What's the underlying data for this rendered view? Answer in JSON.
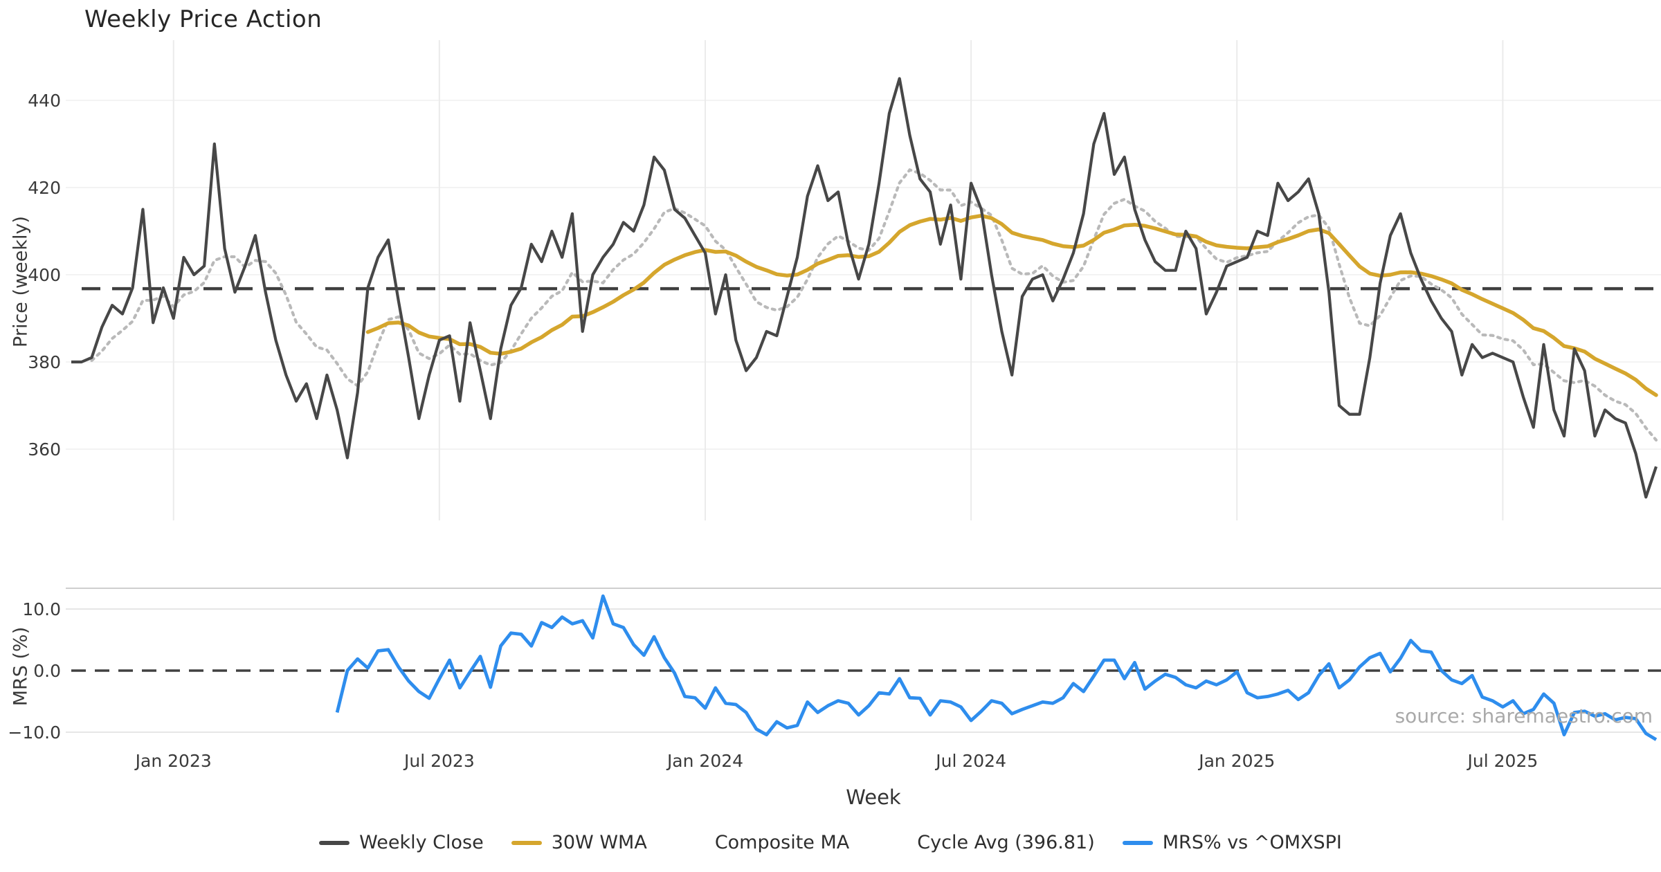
{
  "title": "Weekly Price Action",
  "source_note": "source: sharemaestro.com",
  "colors": {
    "close": "#474747",
    "wma": "#d5a62d",
    "composite": "#b9b9b9",
    "cycle_avg": "#3f3f3f",
    "mrs": "#2e8ded",
    "grid": "#ebebeb",
    "grid_faint": "#f3f3f3",
    "panel_border": "#cfcfcf",
    "tick_text": "#3a3a3a"
  },
  "legend": [
    {
      "label": "Weekly Close",
      "color": "#474747",
      "style": "solid"
    },
    {
      "label": "30W WMA",
      "color": "#d5a62d",
      "style": "solid"
    },
    {
      "label": "Composite MA",
      "color": "#b9b9b9",
      "style": "dotted"
    },
    {
      "label": "Cycle Avg (396.81)",
      "color": "#3f3f3f",
      "style": "dashed"
    },
    {
      "label": "MRS% vs ^OMXSPI",
      "color": "#2e8ded",
      "style": "solid"
    }
  ],
  "chart_data": [
    {
      "type": "line",
      "panel": "price",
      "title": "Weekly Price Action",
      "xlabel": "",
      "ylabel": "Price (weekly)",
      "ylim": [
        344,
        453.5
      ],
      "yticks": [
        {
          "v": 360,
          "label": "360"
        },
        {
          "v": 380,
          "label": "380"
        },
        {
          "v": 400,
          "label": "400"
        },
        {
          "v": 420,
          "label": "420"
        },
        {
          "v": 440,
          "label": "440"
        }
      ],
      "x_ticks": [
        {
          "i": 10,
          "label": "Jan 2023"
        },
        {
          "i": 36,
          "label": "Jul 2023"
        },
        {
          "i": 62,
          "label": "Jan 2024"
        },
        {
          "i": 88,
          "label": "Jul 2024"
        },
        {
          "i": 114,
          "label": "Jan 2025"
        },
        {
          "i": 140,
          "label": "Jul 2025"
        }
      ],
      "grid": "vertical-and-faint-horizontal",
      "legend_position": "bottom-center",
      "cycle_avg": 396.81,
      "series": [
        {
          "name": "Weekly Close",
          "values": [
            380,
            380,
            381,
            388,
            393,
            391,
            397,
            415,
            389,
            397,
            390,
            404,
            400,
            402,
            430,
            406,
            396,
            402,
            409,
            396,
            385,
            377,
            371,
            375,
            367,
            377,
            369,
            358,
            373,
            397,
            404,
            408,
            394,
            381,
            367,
            377,
            385,
            386,
            371,
            389,
            378,
            367,
            383,
            393,
            397,
            407,
            403,
            410,
            404,
            414,
            387,
            400,
            404,
            407,
            412,
            410,
            416,
            427,
            424,
            415,
            413,
            409,
            405,
            391,
            400,
            385,
            378,
            381,
            387,
            386,
            395,
            404,
            418,
            425,
            417,
            419,
            407,
            399,
            407,
            421,
            437,
            445,
            432,
            422,
            419,
            407,
            416,
            399,
            421,
            415,
            400,
            387,
            377,
            395,
            399,
            400,
            394,
            399,
            405,
            414,
            430,
            437,
            423,
            427,
            415,
            408,
            403,
            401,
            401,
            410,
            406,
            391,
            396,
            402,
            403,
            404,
            410,
            409,
            421,
            417,
            419,
            422,
            414,
            396,
            370,
            368,
            368,
            381,
            398,
            409,
            414,
            405,
            399,
            394,
            390,
            387,
            377,
            384,
            381,
            382,
            381,
            380,
            372,
            365,
            384,
            369,
            363,
            383,
            378,
            363,
            369,
            367,
            366,
            359,
            349,
            356
          ]
        },
        {
          "name": "30W WMA",
          "derived_from": "Weekly Close",
          "method": "weighted_moving_average",
          "window": 30
        },
        {
          "name": "Composite MA",
          "derived_from": "Weekly Close",
          "method": "mean_of_smas",
          "windows": [
            3,
            8,
            15
          ]
        },
        {
          "name": "Cycle Avg (396.81)",
          "method": "constant",
          "value": 396.81
        }
      ]
    },
    {
      "type": "line",
      "panel": "mrs",
      "xlabel": "Week",
      "ylabel": "MRS (%)",
      "ylim": [
        -12.4,
        13.4
      ],
      "yticks": [
        {
          "v": 10,
          "label": "10.0"
        },
        {
          "v": 0,
          "label": "0.0"
        },
        {
          "v": -10,
          "label": "−10.0"
        }
      ],
      "zero_line_dashed": true,
      "series": [
        {
          "name": "MRS% vs ^OMXSPI",
          "values": [
            null,
            null,
            null,
            null,
            null,
            null,
            null,
            null,
            null,
            null,
            null,
            null,
            null,
            null,
            null,
            null,
            null,
            null,
            null,
            null,
            null,
            null,
            null,
            null,
            null,
            null,
            -6.8,
            0.0,
            1.9,
            0.4,
            3.2,
            3.4,
            0.6,
            -1.7,
            -3.4,
            -4.5,
            -1.3,
            1.7,
            -2.8,
            -0.2,
            2.3,
            -2.7,
            4.0,
            6.1,
            5.9,
            4.0,
            7.8,
            7.0,
            8.7,
            7.6,
            8.1,
            5.3,
            12.1,
            7.6,
            7.0,
            4.2,
            2.5,
            5.5,
            2.1,
            -0.4,
            -4.2,
            -4.4,
            -6.1,
            -2.8,
            -5.3,
            -5.5,
            -6.8,
            -9.5,
            -10.4,
            -8.3,
            -9.3,
            -8.9,
            -5.1,
            -6.8,
            -5.7,
            -4.9,
            -5.3,
            -7.2,
            -5.7,
            -3.6,
            -3.8,
            -1.3,
            -4.4,
            -4.5,
            -7.2,
            -4.9,
            -5.1,
            -5.9,
            -8.1,
            -6.6,
            -4.9,
            -5.3,
            -7.0,
            -6.3,
            -5.7,
            -5.1,
            -5.3,
            -4.4,
            -2.1,
            -3.4,
            -0.9,
            1.7,
            1.7,
            -1.3,
            1.3,
            -3.0,
            -1.7,
            -0.6,
            -1.1,
            -2.3,
            -2.8,
            -1.7,
            -2.3,
            -1.5,
            -0.2,
            -3.6,
            -4.4,
            -4.2,
            -3.8,
            -3.2,
            -4.7,
            -3.6,
            -0.8,
            1.1,
            -2.8,
            -1.5,
            0.6,
            2.1,
            2.8,
            -0.2,
            2.0,
            4.9,
            3.2,
            3.0,
            0.0,
            -1.5,
            -2.1,
            -0.8,
            -4.3,
            -4.9,
            -5.9,
            -4.9,
            -7.0,
            -6.3,
            -3.8,
            -5.3,
            -10.4,
            -6.8,
            -6.6,
            -7.4,
            -7.0,
            -8.0,
            -7.6,
            -7.8,
            -10.2,
            -11.2
          ]
        }
      ]
    }
  ]
}
